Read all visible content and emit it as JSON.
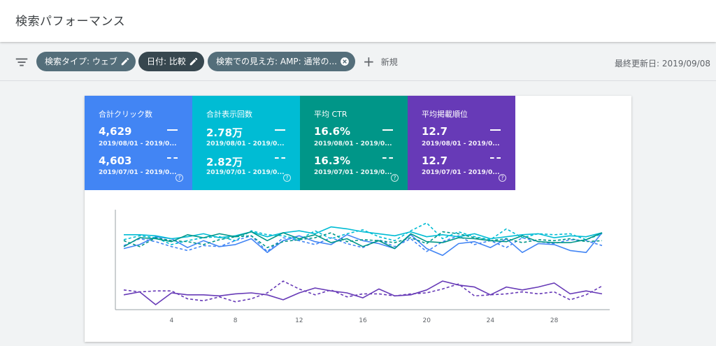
{
  "header": {
    "title": "検索パフォーマンス"
  },
  "toolbar": {
    "chips": [
      {
        "label": "検索タイプ: ウェブ",
        "icon": "pencil-icon"
      },
      {
        "label": "日付: 比較",
        "icon": "pencil-icon"
      },
      {
        "label": "検索での見え方: AMP: 通常の...",
        "icon": "clear-icon"
      }
    ],
    "new_label": "新規",
    "last_updated": "最終更新日: 2019/09/08"
  },
  "metrics": [
    {
      "label": "合計クリック数",
      "v1": "4,629",
      "r1": "2019/08/01 - 2019/0...",
      "v2": "4,603",
      "r2": "2019/07/01 - 2019/0...",
      "color": "#4285f4"
    },
    {
      "label": "合計表示回数",
      "v1": "2.78万",
      "r1": "2019/08/01 - 2019/0...",
      "v2": "2.82万",
      "r2": "2019/07/01 - 2019/0...",
      "color": "#00bcd4"
    },
    {
      "label": "平均 CTR",
      "v1": "16.6%",
      "r1": "2019/08/01 - 2019/0...",
      "v2": "16.3%",
      "r2": "2019/07/01 - 2019/0...",
      "color": "#009688"
    },
    {
      "label": "平均掲載順位",
      "v1": "12.7",
      "r1": "2019/08/01 - 2019/0...",
      "v2": "12.7",
      "r2": "2019/07/01 - 2019/0...",
      "color": "#673ab7"
    }
  ],
  "chart_data": {
    "type": "line",
    "x_ticks": [
      "4",
      "8",
      "12",
      "16",
      "20",
      "24",
      "28"
    ],
    "x_range": [
      1,
      31
    ],
    "grid": false,
    "series": [
      {
        "color": "#4285f4",
        "style": "solid",
        "values": [
          0.62,
          0.66,
          0.74,
          0.72,
          0.63,
          0.7,
          0.64,
          0.66,
          0.72,
          0.58,
          0.7,
          0.75,
          0.69,
          0.66,
          0.76,
          0.7,
          0.67,
          0.62,
          0.76,
          0.62,
          0.55,
          0.67,
          0.69,
          0.63,
          0.72,
          0.58,
          0.67,
          0.66,
          0.6,
          0.58,
          0.78
        ]
      },
      {
        "color": "#4285f4",
        "style": "dashed",
        "values": [
          0.65,
          0.72,
          0.69,
          0.64,
          0.6,
          0.65,
          0.64,
          0.7,
          0.75,
          0.59,
          0.73,
          0.7,
          0.66,
          0.73,
          0.67,
          0.63,
          0.71,
          0.64,
          0.72,
          0.59,
          0.69,
          0.75,
          0.66,
          0.7,
          0.63,
          0.73,
          0.69,
          0.67,
          0.71,
          0.7,
          0.65
        ]
      },
      {
        "color": "#00bcd4",
        "style": "solid",
        "values": [
          0.76,
          0.76,
          0.75,
          0.72,
          0.74,
          0.77,
          0.73,
          0.75,
          0.79,
          0.74,
          0.78,
          0.8,
          0.77,
          0.84,
          0.82,
          0.79,
          0.77,
          0.75,
          0.79,
          0.74,
          0.76,
          0.74,
          0.77,
          0.72,
          0.74,
          0.76,
          0.77,
          0.73,
          0.75,
          0.74,
          0.78
        ]
      },
      {
        "color": "#00bcd4",
        "style": "dashed",
        "values": [
          0.71,
          0.75,
          0.73,
          0.66,
          0.7,
          0.73,
          0.74,
          0.7,
          0.8,
          0.76,
          0.75,
          0.71,
          0.8,
          0.72,
          0.77,
          0.81,
          0.74,
          0.7,
          0.8,
          0.88,
          0.72,
          0.79,
          0.74,
          0.71,
          0.82,
          0.73,
          0.77,
          0.76,
          0.77,
          0.71,
          0.77
        ]
      },
      {
        "color": "#009688",
        "style": "solid",
        "values": [
          0.64,
          0.73,
          0.72,
          0.69,
          0.76,
          0.73,
          0.77,
          0.74,
          0.79,
          0.7,
          0.78,
          0.72,
          0.76,
          0.68,
          0.72,
          0.64,
          0.7,
          0.62,
          0.77,
          0.69,
          0.68,
          0.73,
          0.72,
          0.7,
          0.69,
          0.75,
          0.69,
          0.68,
          0.68,
          0.71,
          0.78
        ]
      },
      {
        "color": "#009688",
        "style": "dashed",
        "values": [
          0.7,
          0.64,
          0.73,
          0.7,
          0.69,
          0.66,
          0.71,
          0.74,
          0.75,
          0.63,
          0.69,
          0.71,
          0.73,
          0.78,
          0.69,
          0.71,
          0.7,
          0.68,
          0.73,
          0.67,
          0.79,
          0.77,
          0.73,
          0.7,
          0.72,
          0.68,
          0.71,
          0.7,
          0.72,
          0.69,
          0.7
        ]
      },
      {
        "color": "#673ab7",
        "style": "solid",
        "values": [
          0.15,
          0.18,
          0.05,
          0.17,
          0.15,
          0.15,
          0.14,
          0.16,
          0.17,
          0.15,
          0.1,
          0.17,
          0.22,
          0.19,
          0.17,
          0.12,
          0.21,
          0.14,
          0.15,
          0.2,
          0.29,
          0.25,
          0.23,
          0.15,
          0.23,
          0.2,
          0.23,
          0.27,
          0.16,
          0.19,
          0.16
        ]
      },
      {
        "color": "#673ab7",
        "style": "dashed",
        "values": [
          0.2,
          0.18,
          0.19,
          0.19,
          0.11,
          0.09,
          0.13,
          0.08,
          0.11,
          0.17,
          0.29,
          0.21,
          0.15,
          0.2,
          0.13,
          0.16,
          0.16,
          0.14,
          0.16,
          0.17,
          0.21,
          0.26,
          0.14,
          0.15,
          0.16,
          0.18,
          0.16,
          0.18,
          0.1,
          0.15,
          0.24
        ]
      }
    ]
  }
}
